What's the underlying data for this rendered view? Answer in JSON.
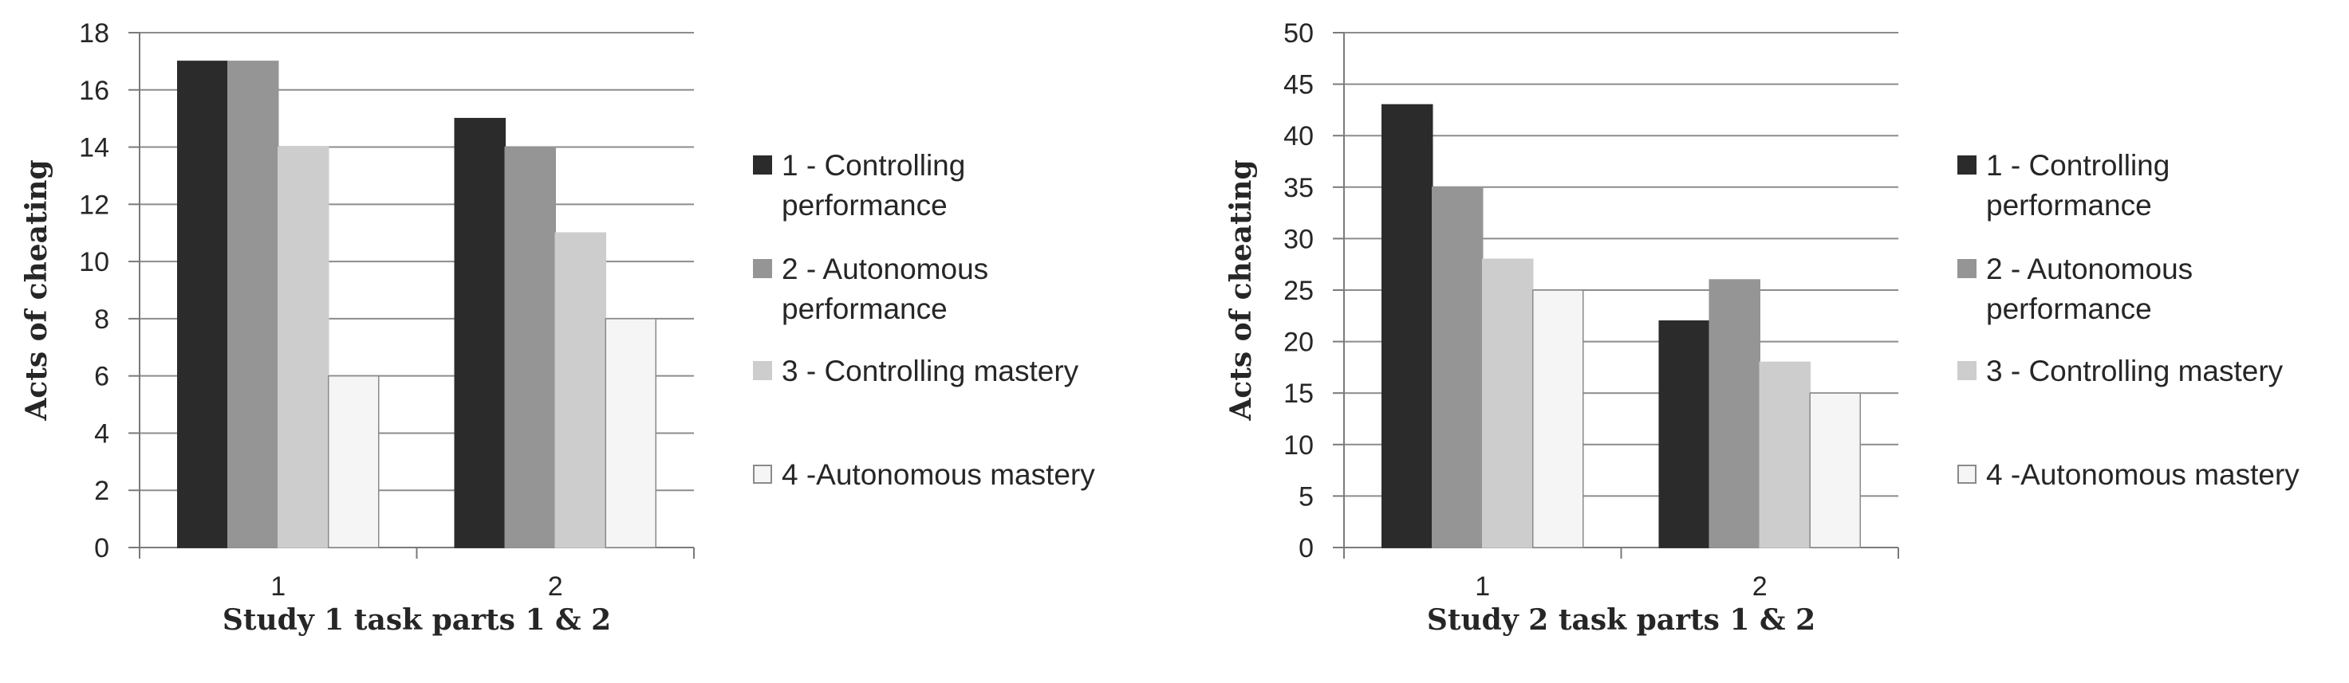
{
  "chart_data": [
    {
      "type": "bar",
      "categories": [
        "1",
        "2"
      ],
      "series": [
        {
          "name": "1 - Controlling performance",
          "values": [
            17,
            15
          ]
        },
        {
          "name": "2 - Autonomous performance",
          "values": [
            17,
            14
          ]
        },
        {
          "name": "3 - Controlling mastery",
          "values": [
            14,
            11
          ]
        },
        {
          "name": "4 -Autonomous mastery",
          "values": [
            6,
            8
          ]
        }
      ],
      "xlabel": "Study 1 task parts 1 & 2",
      "ylabel": "Acts of cheating",
      "ylim": [
        0,
        18
      ],
      "yticks": [
        0,
        2,
        4,
        6,
        8,
        10,
        12,
        14,
        16,
        18
      ],
      "grid": true,
      "legend_position": "right"
    },
    {
      "type": "bar",
      "categories": [
        "1",
        "2"
      ],
      "series": [
        {
          "name": "1 - Controlling performance",
          "values": [
            43,
            22
          ]
        },
        {
          "name": "2 - Autonomous performance",
          "values": [
            35,
            26
          ]
        },
        {
          "name": "3 - Controlling mastery",
          "values": [
            28,
            18
          ]
        },
        {
          "name": "4 -Autonomous mastery",
          "values": [
            25,
            15
          ]
        }
      ],
      "xlabel": "Study 2 task parts 1 & 2",
      "ylabel": "Acts of cheating",
      "ylim": [
        0,
        50
      ],
      "yticks": [
        0,
        5,
        10,
        15,
        20,
        25,
        30,
        35,
        40,
        45,
        50
      ],
      "grid": true,
      "legend_position": "right"
    }
  ],
  "legend_lines": [
    [
      "1 - Controlling",
      "performance"
    ],
    [
      "2 - Autonomous",
      "performance"
    ],
    [
      "3 - Controlling mastery"
    ],
    [
      "4 -Autonomous mastery"
    ]
  ],
  "colors": {
    "series": [
      "#2b2b2b",
      "#959595",
      "#cdcdcd",
      "#f5f5f5"
    ],
    "series_stroke": [
      "#2b2b2b",
      "#959595",
      "#cdcdcd",
      "#8a8a8a"
    ],
    "grid": "#8c8c8c",
    "axis": "#7a7a7a"
  }
}
